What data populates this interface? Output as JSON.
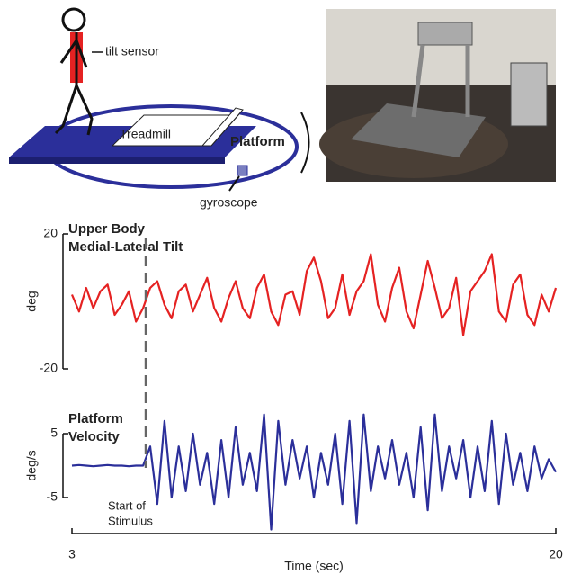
{
  "diagram": {
    "labels": {
      "sensor": "tilt sensor",
      "treadmill": "Treadmill",
      "platform": "Platform",
      "gyro": "gyroscope"
    }
  },
  "annotation": {
    "lines": [
      "Start of",
      "Stimulus"
    ],
    "x": 5.6
  },
  "chart_data": [
    {
      "type": "line",
      "title_lines": [
        "Upper Body",
        "Medial-Lateral Tilt"
      ],
      "ylabel": "deg",
      "ylim": [
        -20,
        20
      ],
      "yticks": [
        -20,
        20
      ],
      "x": [
        3,
        3.25,
        3.5,
        3.75,
        4,
        4.25,
        4.5,
        4.75,
        5,
        5.25,
        5.5,
        5.75,
        6,
        6.25,
        6.5,
        6.75,
        7,
        7.25,
        7.5,
        7.75,
        8,
        8.25,
        8.5,
        8.75,
        9,
        9.25,
        9.5,
        9.75,
        10,
        10.25,
        10.5,
        10.75,
        11,
        11.25,
        11.5,
        11.75,
        12,
        12.25,
        12.5,
        12.75,
        13,
        13.25,
        13.5,
        13.75,
        14,
        14.25,
        14.5,
        14.75,
        15,
        15.25,
        15.5,
        15.75,
        16,
        16.25,
        16.5,
        16.75,
        17,
        17.25,
        17.5,
        17.75,
        18,
        18.25,
        18.5,
        18.75,
        19,
        19.25,
        19.5,
        19.75,
        20
      ],
      "series": [
        {
          "color": "#e52222",
          "values": [
            2,
            -3,
            4,
            -2,
            3,
            5,
            -4,
            -1,
            3,
            -6,
            -2,
            4,
            6,
            -1,
            -5,
            3,
            5,
            -3,
            2,
            7,
            -2,
            -6,
            1,
            6,
            -2,
            -5,
            4,
            8,
            -3,
            -7,
            2,
            3,
            -4,
            9,
            13,
            6,
            -5,
            -2,
            8,
            -4,
            3,
            6,
            14,
            -1,
            -6,
            4,
            10,
            -3,
            -8,
            2,
            12,
            4,
            -5,
            -2,
            7,
            -10,
            3,
            6,
            9,
            14,
            -3,
            -6,
            5,
            8,
            -4,
            -7,
            2,
            -3,
            4
          ]
        }
      ]
    },
    {
      "type": "line",
      "title_lines": [
        "Platform",
        "Velocity"
      ],
      "ylabel": "deg/s",
      "ylim": [
        -5,
        5
      ],
      "yticks": [
        -5,
        5
      ],
      "xlabel": "Time (sec)",
      "xlim": [
        3,
        20
      ],
      "xticks": [
        3,
        20
      ],
      "x": [
        3,
        3.25,
        3.5,
        3.75,
        4,
        4.25,
        4.5,
        4.75,
        5,
        5.25,
        5.5,
        5.75,
        6,
        6.25,
        6.5,
        6.75,
        7,
        7.25,
        7.5,
        7.75,
        8,
        8.25,
        8.5,
        8.75,
        9,
        9.25,
        9.5,
        9.75,
        10,
        10.25,
        10.5,
        10.75,
        11,
        11.25,
        11.5,
        11.75,
        12,
        12.25,
        12.5,
        12.75,
        13,
        13.25,
        13.5,
        13.75,
        14,
        14.25,
        14.5,
        14.75,
        15,
        15.25,
        15.5,
        15.75,
        16,
        16.25,
        16.5,
        16.75,
        17,
        17.25,
        17.5,
        17.75,
        18,
        18.25,
        18.5,
        18.75,
        19,
        19.25,
        19.5,
        19.75,
        20
      ],
      "series": [
        {
          "color": "#2b2f9a",
          "values": [
            0,
            0.1,
            0,
            -0.1,
            0,
            0.1,
            0,
            0,
            -0.1,
            0,
            0,
            3,
            -6,
            7,
            -5,
            3,
            -4,
            5,
            -3,
            2,
            -6,
            4,
            -5,
            6,
            -3,
            2,
            -4,
            8,
            -10,
            7,
            -3,
            4,
            -2,
            3,
            -5,
            2,
            -3,
            5,
            -6,
            7,
            -9,
            8,
            -4,
            3,
            -2,
            4,
            -3,
            2,
            -5,
            6,
            -7,
            8,
            -4,
            3,
            -2,
            4,
            -5,
            3,
            -4,
            7,
            -6,
            5,
            -3,
            2,
            -4,
            3,
            -2,
            1,
            -1
          ]
        }
      ]
    }
  ]
}
